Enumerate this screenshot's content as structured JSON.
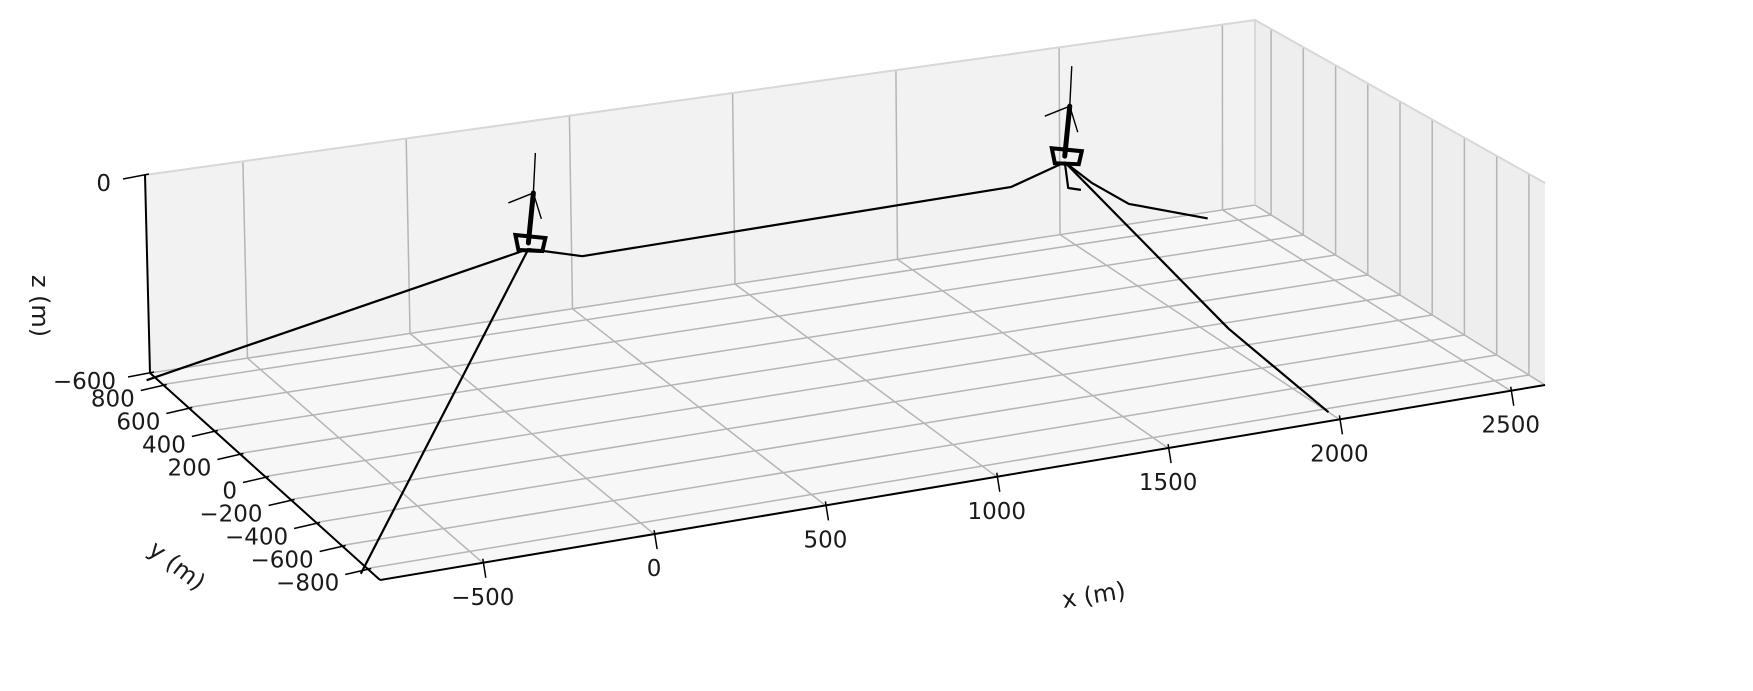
{
  "chart_data": {
    "type": "3d-line",
    "xlabel": "x (m)",
    "ylabel": "y (m)",
    "zlabel": "z (m)",
    "xlim": [
      -800,
      2600
    ],
    "ylim": [
      -900,
      900
    ],
    "zlim": [
      -600,
      0
    ],
    "x_ticks": [
      -500,
      0,
      500,
      1000,
      1500,
      2000,
      2500
    ],
    "x_tick_labels": [
      "−500",
      "0",
      "500",
      "1000",
      "1500",
      "2000",
      "2500"
    ],
    "y_ticks": [
      -800,
      -600,
      -400,
      -200,
      0,
      200,
      400,
      600,
      800
    ],
    "y_tick_labels": [
      "−800",
      "−600",
      "−400",
      "−200",
      "0",
      "200",
      "400",
      "600",
      "800"
    ],
    "z_ticks": [
      -600,
      0
    ],
    "z_tick_labels": [
      "−600",
      "0"
    ],
    "grid": true,
    "platforms": [
      {
        "x": 0,
        "y": 0
      },
      {
        "x": 1600,
        "y": 0
      }
    ],
    "series": [
      {
        "points": [
          [
            0,
            0,
            -20
          ],
          [
            -830,
            850,
            -600
          ]
        ]
      },
      {
        "points": [
          [
            0,
            0,
            -20
          ],
          [
            -830,
            -830,
            -600
          ]
        ]
      },
      {
        "points": [
          [
            0,
            0,
            -20
          ],
          [
            160,
            0,
            -70
          ],
          [
            1440,
            0,
            -70
          ],
          [
            1600,
            0,
            -20
          ]
        ]
      },
      {
        "points": [
          [
            1600,
            0,
            -20
          ],
          [
            1700,
            200,
            -180
          ],
          [
            1830,
            400,
            -270
          ]
        ]
      },
      {
        "points": [
          [
            1600,
            0,
            -20
          ],
          [
            1800,
            260,
            -200
          ],
          [
            2050,
            560,
            -400
          ],
          [
            2430,
            850,
            -600
          ]
        ]
      },
      {
        "points": [
          [
            1600,
            0,
            -20
          ],
          [
            1830,
            -560,
            -400
          ],
          [
            2000,
            -830,
            -600
          ]
        ]
      }
    ]
  }
}
